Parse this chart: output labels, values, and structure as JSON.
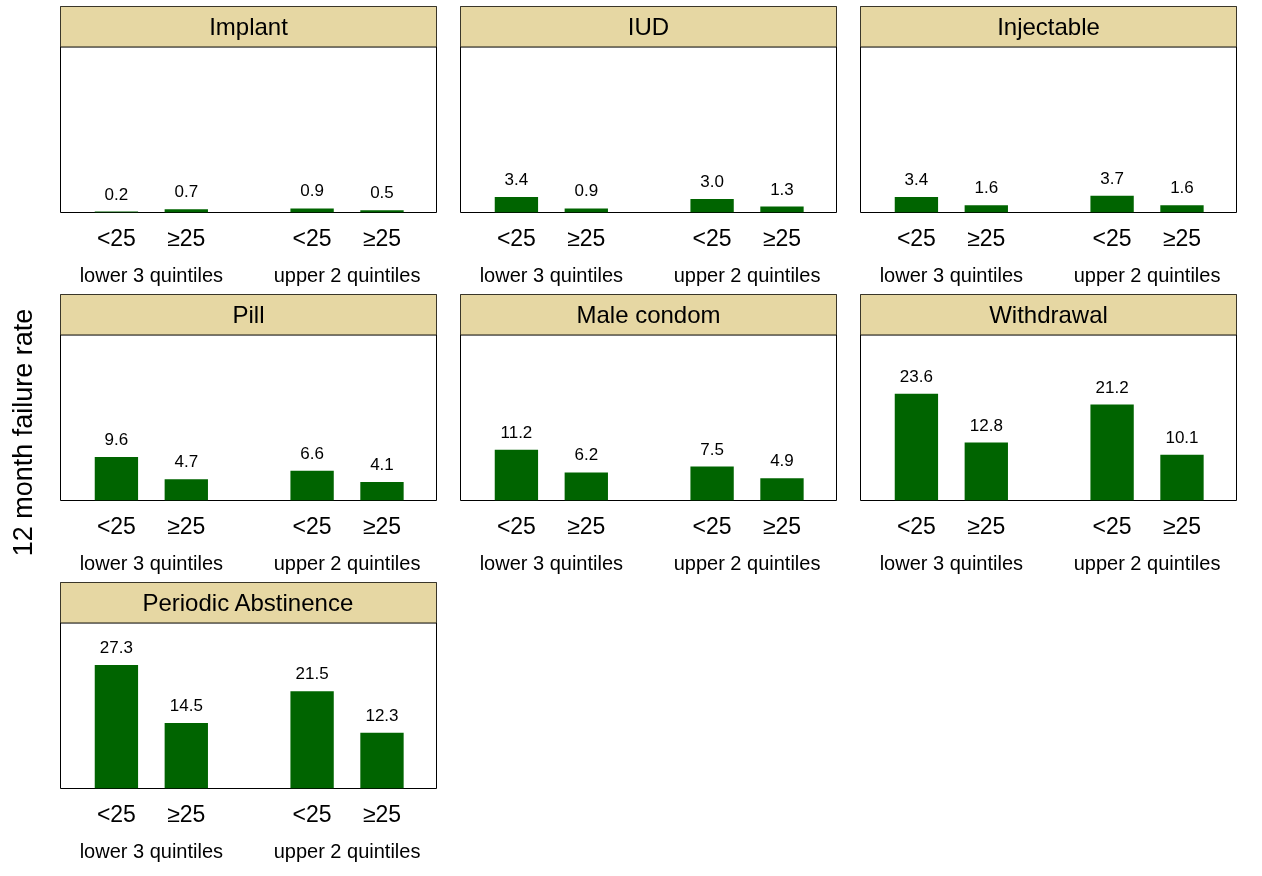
{
  "chart_data": [
    {
      "type": "bar",
      "title": "Implant",
      "categories": [
        "<25",
        "≥25",
        "<25",
        "≥25"
      ],
      "values": [
        0.2,
        0.7,
        0.9,
        0.5
      ],
      "value_labels": [
        "0.2",
        "0.7",
        "0.9",
        "0.5"
      ],
      "color": "#006400",
      "annotations": [
        "lower 3 quintiles",
        "upper 2 quintiles"
      ]
    },
    {
      "type": "bar",
      "title": "IUD",
      "categories": [
        "<25",
        "≥25",
        "<25",
        "≥25"
      ],
      "values": [
        3.4,
        0.9,
        3.0,
        1.3
      ],
      "value_labels": [
        "3.4",
        "0.9",
        "3.0",
        "1.3"
      ],
      "color": "#006400",
      "annotations": [
        "lower 3 quintiles",
        "upper 2 quintiles"
      ]
    },
    {
      "type": "bar",
      "title": "Injectable",
      "categories": [
        "<25",
        "≥25",
        "<25",
        "≥25"
      ],
      "values": [
        3.4,
        1.6,
        3.7,
        1.6
      ],
      "value_labels": [
        "3.4",
        "1.6",
        "3.7",
        "1.6"
      ],
      "color": "#006400",
      "annotations": [
        "lower 3 quintiles",
        "upper 2 quintiles"
      ]
    },
    {
      "type": "bar",
      "title": "Pill",
      "ylabel": "12 month failure rate",
      "categories": [
        "<25",
        "≥25",
        "<25",
        "≥25"
      ],
      "values": [
        9.6,
        4.7,
        6.6,
        4.1
      ],
      "value_labels": [
        "9.6",
        "4.7",
        "6.6",
        "4.1"
      ],
      "color": "#006400",
      "annotations": [
        "lower 3 quintiles",
        "upper 2 quintiles"
      ]
    },
    {
      "type": "bar",
      "title": "Male condom",
      "categories": [
        "<25",
        "≥25",
        "<25",
        "≥25"
      ],
      "values": [
        11.2,
        6.2,
        7.5,
        4.9
      ],
      "value_labels": [
        "11.2",
        "6.2",
        "7.5",
        "4.9"
      ],
      "color": "#006400",
      "annotations": [
        "lower 3 quintiles",
        "upper 2 quintiles"
      ]
    },
    {
      "type": "bar",
      "title": "Withdrawal",
      "categories": [
        "<25",
        "≥25",
        "<25",
        "≥25"
      ],
      "values": [
        23.6,
        12.8,
        21.2,
        10.1
      ],
      "value_labels": [
        "23.6",
        "12.8",
        "21.2",
        "10.1"
      ],
      "color": "#006400",
      "annotations": [
        "lower 3 quintiles",
        "upper 2 quintiles"
      ]
    },
    {
      "type": "bar",
      "title": "Periodic Abstinence",
      "categories": [
        "<25",
        "≥25",
        "<25",
        "≥25"
      ],
      "values": [
        27.3,
        14.5,
        21.5,
        12.3
      ],
      "value_labels": [
        "27.3",
        "14.5",
        "21.5",
        "12.3"
      ],
      "color": "#006400",
      "annotations": [
        "lower 3 quintiles",
        "upper 2 quintiles"
      ]
    }
  ]
}
